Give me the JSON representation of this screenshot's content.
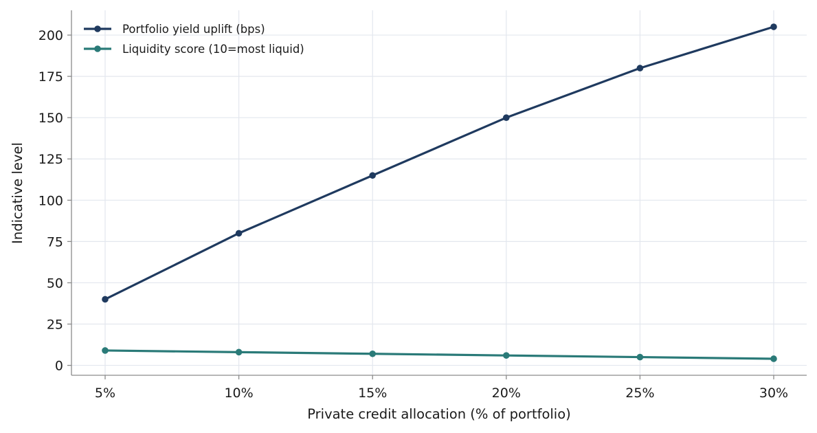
{
  "chart_data": {
    "type": "line",
    "title": "",
    "xlabel": "Private credit allocation (% of portfolio)",
    "ylabel": "Indicative level",
    "categories": [
      "5%",
      "10%",
      "15%",
      "20%",
      "25%",
      "30%"
    ],
    "ylim": [
      -6,
      215
    ],
    "yticks": [
      0,
      25,
      50,
      75,
      100,
      125,
      150,
      175,
      200
    ],
    "grid": true,
    "legend_position": "top-left",
    "series": [
      {
        "name": "Portfolio yield uplift (bps)",
        "values": [
          40,
          80,
          115,
          150,
          180,
          205
        ],
        "color": "#1f3a5f"
      },
      {
        "name": "Liquidity score (10=most liquid)",
        "values": [
          9,
          8,
          7,
          6,
          5,
          4
        ],
        "color": "#2a7a78"
      }
    ]
  }
}
